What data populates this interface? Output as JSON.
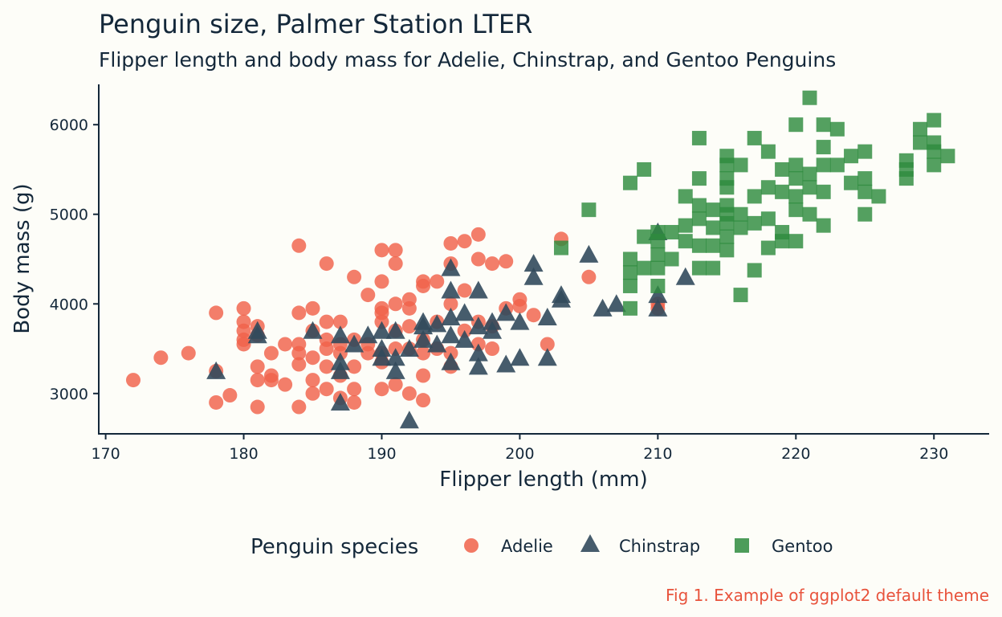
{
  "chart_data": {
    "type": "scatter",
    "title": "Penguin size, Palmer Station LTER",
    "subtitle": "Flipper length and body mass for Adelie, Chinstrap, and Gentoo Penguins",
    "xlabel": "Flipper length (mm)",
    "ylabel": "Body mass (g)",
    "xlim": [
      169.5,
      234
    ],
    "ylim": [
      2550,
      6450
    ],
    "xticks": [
      170,
      180,
      190,
      200,
      210,
      220,
      230
    ],
    "yticks": [
      3000,
      4000,
      5000,
      6000
    ],
    "grid": false,
    "legend_title": "Penguin species",
    "legend_position": "bottom",
    "caption": "Fig 1. Example of ggplot2 default theme",
    "series": [
      {
        "name": "Adelie",
        "marker": "circle",
        "color": "#f0614a",
        "points": [
          [
            172,
            3150
          ],
          [
            174,
            3400
          ],
          [
            176,
            3450
          ],
          [
            178,
            3900
          ],
          [
            178,
            3250
          ],
          [
            178,
            2900
          ],
          [
            179,
            2980
          ],
          [
            180,
            3950
          ],
          [
            180,
            3800
          ],
          [
            180,
            3700
          ],
          [
            180,
            3600
          ],
          [
            180,
            3550
          ],
          [
            181,
            3750
          ],
          [
            181,
            3650
          ],
          [
            181,
            3300
          ],
          [
            181,
            3150
          ],
          [
            181,
            2850
          ],
          [
            182,
            3450
          ],
          [
            182,
            3200
          ],
          [
            182,
            3150
          ],
          [
            183,
            3100
          ],
          [
            183,
            3550
          ],
          [
            184,
            4650
          ],
          [
            184,
            3900
          ],
          [
            184,
            3550
          ],
          [
            184,
            3450
          ],
          [
            184,
            3325
          ],
          [
            184,
            2850
          ],
          [
            185,
            3950
          ],
          [
            185,
            3700
          ],
          [
            185,
            3400
          ],
          [
            185,
            3150
          ],
          [
            185,
            3000
          ],
          [
            186,
            4450
          ],
          [
            186,
            3800
          ],
          [
            186,
            3600
          ],
          [
            186,
            3500
          ],
          [
            186,
            3300
          ],
          [
            186,
            3050
          ],
          [
            187,
            3800
          ],
          [
            187,
            3550
          ],
          [
            187,
            3450
          ],
          [
            187,
            3200
          ],
          [
            187,
            2950
          ],
          [
            188,
            4300
          ],
          [
            188,
            3600
          ],
          [
            188,
            3300
          ],
          [
            188,
            3050
          ],
          [
            188,
            2900
          ],
          [
            189,
            4100
          ],
          [
            189,
            3550
          ],
          [
            189,
            3450
          ],
          [
            190,
            4600
          ],
          [
            190,
            4250
          ],
          [
            190,
            3950
          ],
          [
            190,
            3900
          ],
          [
            190,
            3800
          ],
          [
            190,
            3450
          ],
          [
            190,
            3350
          ],
          [
            190,
            3050
          ],
          [
            191,
            4600
          ],
          [
            191,
            4450
          ],
          [
            191,
            4000
          ],
          [
            191,
            3700
          ],
          [
            191,
            3500
          ],
          [
            191,
            3100
          ],
          [
            192,
            4050
          ],
          [
            192,
            3950
          ],
          [
            192,
            3750
          ],
          [
            192,
            3500
          ],
          [
            192,
            3000
          ],
          [
            193,
            4250
          ],
          [
            193,
            4200
          ],
          [
            193,
            3600
          ],
          [
            193,
            3450
          ],
          [
            193,
            3200
          ],
          [
            193,
            2925
          ],
          [
            194,
            4250
          ],
          [
            194,
            3800
          ],
          [
            194,
            3500
          ],
          [
            195,
            4675
          ],
          [
            195,
            4450
          ],
          [
            195,
            4000
          ],
          [
            195,
            3450
          ],
          [
            195,
            3300
          ],
          [
            196,
            4700
          ],
          [
            196,
            4150
          ],
          [
            196,
            3700
          ],
          [
            197,
            4775
          ],
          [
            197,
            4500
          ],
          [
            197,
            3800
          ],
          [
            197,
            3550
          ],
          [
            198,
            4450
          ],
          [
            198,
            3750
          ],
          [
            198,
            3500
          ],
          [
            199,
            4475
          ],
          [
            199,
            3950
          ],
          [
            200,
            4050
          ],
          [
            200,
            3975
          ],
          [
            201,
            3875
          ],
          [
            202,
            3550
          ],
          [
            203,
            4725
          ],
          [
            205,
            4300
          ],
          [
            210,
            4000
          ],
          [
            210,
            3950
          ]
        ]
      },
      {
        "name": "Chinstrap",
        "marker": "triangle",
        "color": "#324a5c",
        "points": [
          [
            178,
            3250
          ],
          [
            181,
            3700
          ],
          [
            181,
            3650
          ],
          [
            185,
            3700
          ],
          [
            187,
            3650
          ],
          [
            187,
            3350
          ],
          [
            187,
            3250
          ],
          [
            187,
            2900
          ],
          [
            188,
            3550
          ],
          [
            189,
            3650
          ],
          [
            190,
            3700
          ],
          [
            190,
            3500
          ],
          [
            190,
            3400
          ],
          [
            191,
            3700
          ],
          [
            191,
            3400
          ],
          [
            191,
            3250
          ],
          [
            192,
            3500
          ],
          [
            192,
            2700
          ],
          [
            193,
            3800
          ],
          [
            193,
            3750
          ],
          [
            193,
            3600
          ],
          [
            194,
            3775
          ],
          [
            194,
            3550
          ],
          [
            195,
            4400
          ],
          [
            195,
            4150
          ],
          [
            195,
            3850
          ],
          [
            195,
            3650
          ],
          [
            195,
            3350
          ],
          [
            196,
            3900
          ],
          [
            196,
            3600
          ],
          [
            197,
            4150
          ],
          [
            197,
            3750
          ],
          [
            197,
            3450
          ],
          [
            197,
            3300
          ],
          [
            198,
            3800
          ],
          [
            198,
            3700
          ],
          [
            199,
            3900
          ],
          [
            199,
            3325
          ],
          [
            200,
            3800
          ],
          [
            200,
            3400
          ],
          [
            201,
            4450
          ],
          [
            201,
            4300
          ],
          [
            202,
            3850
          ],
          [
            202,
            3400
          ],
          [
            203,
            4100
          ],
          [
            203,
            4050
          ],
          [
            205,
            4550
          ],
          [
            206,
            3950
          ],
          [
            207,
            4000
          ],
          [
            210,
            4800
          ],
          [
            210,
            4100
          ],
          [
            210,
            3950
          ],
          [
            212,
            4300
          ]
        ]
      },
      {
        "name": "Gentoo",
        "marker": "square",
        "color": "#2e8b3e",
        "points": [
          [
            203,
            4625
          ],
          [
            205,
            5050
          ],
          [
            208,
            5350
          ],
          [
            208,
            4500
          ],
          [
            208,
            4350
          ],
          [
            208,
            4200
          ],
          [
            208,
            3950
          ],
          [
            209,
            5500
          ],
          [
            209,
            4750
          ],
          [
            209,
            4400
          ],
          [
            210,
            4800
          ],
          [
            210,
            4700
          ],
          [
            210,
            4550
          ],
          [
            210,
            4400
          ],
          [
            210,
            4200
          ],
          [
            211,
            4800
          ],
          [
            211,
            4500
          ],
          [
            212,
            5200
          ],
          [
            212,
            4875
          ],
          [
            212,
            4700
          ],
          [
            213,
            5850
          ],
          [
            213,
            5400
          ],
          [
            213,
            5100
          ],
          [
            213,
            4950
          ],
          [
            213,
            4650
          ],
          [
            213,
            4400
          ],
          [
            214,
            5050
          ],
          [
            214,
            4850
          ],
          [
            214,
            4650
          ],
          [
            214,
            4400
          ],
          [
            215,
            5650
          ],
          [
            215,
            5550
          ],
          [
            215,
            5400
          ],
          [
            215,
            5300
          ],
          [
            215,
            5100
          ],
          [
            215,
            5000
          ],
          [
            215,
            4900
          ],
          [
            215,
            4750
          ],
          [
            215,
            4600
          ],
          [
            216,
            5550
          ],
          [
            216,
            5000
          ],
          [
            216,
            4850
          ],
          [
            216,
            4100
          ],
          [
            217,
            5850
          ],
          [
            217,
            5200
          ],
          [
            217,
            4900
          ],
          [
            217,
            4375
          ],
          [
            218,
            5700
          ],
          [
            218,
            5300
          ],
          [
            218,
            4950
          ],
          [
            218,
            4625
          ],
          [
            219,
            5500
          ],
          [
            219,
            5250
          ],
          [
            219,
            4800
          ],
          [
            219,
            4700
          ],
          [
            220,
            6000
          ],
          [
            220,
            5550
          ],
          [
            220,
            5400
          ],
          [
            220,
            5200
          ],
          [
            220,
            5050
          ],
          [
            220,
            4700
          ],
          [
            221,
            6300
          ],
          [
            221,
            5450
          ],
          [
            221,
            5300
          ],
          [
            221,
            5000
          ],
          [
            222,
            6000
          ],
          [
            222,
            5750
          ],
          [
            222,
            5550
          ],
          [
            222,
            5250
          ],
          [
            222,
            4875
          ],
          [
            223,
            5950
          ],
          [
            223,
            5550
          ],
          [
            224,
            5650
          ],
          [
            224,
            5350
          ],
          [
            225,
            5700
          ],
          [
            225,
            5400
          ],
          [
            225,
            5250
          ],
          [
            225,
            5000
          ],
          [
            226,
            5200
          ],
          [
            228,
            5600
          ],
          [
            228,
            5500
          ],
          [
            228,
            5400
          ],
          [
            229,
            5950
          ],
          [
            229,
            5800
          ],
          [
            230,
            6050
          ],
          [
            230,
            5800
          ],
          [
            230,
            5700
          ],
          [
            230,
            5550
          ],
          [
            231,
            5650
          ]
        ]
      }
    ]
  }
}
